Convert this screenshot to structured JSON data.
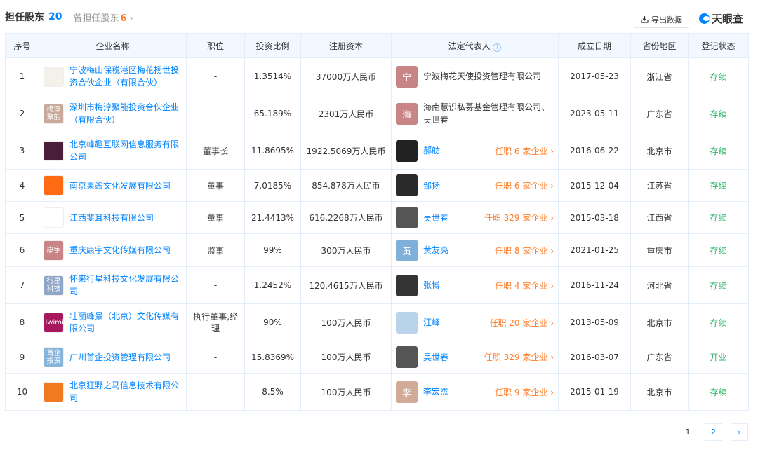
{
  "header": {
    "title": "担任股东",
    "count": "20",
    "former_label": "曾担任股东",
    "former_count": "6",
    "export_label": "导出数据",
    "brand": "天眼查"
  },
  "columns": [
    "序号",
    "企业名称",
    "职位",
    "投资比例",
    "注册资本",
    "法定代表人",
    "成立日期",
    "省份地区",
    "登记状态"
  ],
  "rows": [
    {
      "no": "1",
      "name": "宁波梅山保税港区梅花扬世投资合伙企业（有限合伙）",
      "logo_text": "",
      "logo_color": "#f4f0ea",
      "position": "-",
      "ratio": "1.3514%",
      "capital": "37000万人民币",
      "rep": "宁波梅花天使投资管理有限公司",
      "rep_avatar": "宁",
      "avatar_color": "#c98585",
      "rep_link": false,
      "jobs": "",
      "date": "2017-05-23",
      "region": "浙江省",
      "status": "存续"
    },
    {
      "no": "2",
      "name": "深圳市梅淳聚能投资合伙企业（有限合伙）",
      "logo_text": "梅淳聚能",
      "logo_color": "#c9a99a",
      "position": "-",
      "ratio": "65.189%",
      "capital": "2301万人民币",
      "rep": "海南慧识私募基金管理有限公司、吴世春",
      "rep_avatar": "海",
      "avatar_color": "#c98585",
      "rep_link": false,
      "jobs": "",
      "date": "2023-05-11",
      "region": "广东省",
      "status": "存续"
    },
    {
      "no": "3",
      "name": "北京峰趣互联网信息服务有限公司",
      "logo_text": "",
      "logo_color": "#4a1e3a",
      "position": "董事长",
      "ratio": "11.8695%",
      "capital": "1922.5069万人民币",
      "rep": "郝舫",
      "rep_avatar": "",
      "avatar_color": "#222",
      "rep_link": true,
      "jobs": "任职 6 家企业",
      "date": "2016-06-22",
      "region": "北京市",
      "status": "存续"
    },
    {
      "no": "4",
      "name": "南京果酱文化发展有限公司",
      "logo_text": "",
      "logo_color": "#ff6a14",
      "position": "董事",
      "ratio": "7.0185%",
      "capital": "854.878万人民币",
      "rep": "邹扬",
      "rep_avatar": "",
      "avatar_color": "#2a2a2a",
      "rep_link": true,
      "jobs": "任职 6 家企业",
      "date": "2015-12-04",
      "region": "江苏省",
      "status": "存续"
    },
    {
      "no": "5",
      "name": "江西斐耳科技有限公司",
      "logo_text": "",
      "logo_color": "#ffffff",
      "position": "董事",
      "ratio": "21.4413%",
      "capital": "616.2268万人民币",
      "rep": "吴世春",
      "rep_avatar": "",
      "avatar_color": "#555",
      "rep_link": true,
      "jobs": "任职 329 家企业",
      "date": "2015-03-18",
      "region": "江西省",
      "status": "存续"
    },
    {
      "no": "6",
      "name": "重庆康宇文化传媒有限公司",
      "logo_text": "康宇",
      "logo_color": "#c98585",
      "position": "监事",
      "ratio": "99%",
      "capital": "300万人民币",
      "rep": "黄友亮",
      "rep_avatar": "黄",
      "avatar_color": "#7fb0d9",
      "rep_link": true,
      "jobs": "任职 8 家企业",
      "date": "2021-01-25",
      "region": "重庆市",
      "status": "存续"
    },
    {
      "no": "7",
      "name": "怀来行星科技文化发展有限公司",
      "logo_text": "行星科技",
      "logo_color": "#8fa6c8",
      "position": "-",
      "ratio": "1.2452%",
      "capital": "120.4615万人民币",
      "rep": "张博",
      "rep_avatar": "",
      "avatar_color": "#333",
      "rep_link": true,
      "jobs": "任职 4 家企业",
      "date": "2016-11-24",
      "region": "河北省",
      "status": "存续"
    },
    {
      "no": "8",
      "name": "壮丽峰景（北京）文化传媒有限公司",
      "logo_text": "iwimi",
      "logo_color": "#a8185e",
      "position": "执行董事,经理",
      "ratio": "90%",
      "capital": "100万人民币",
      "rep": "汪峰",
      "rep_avatar": "",
      "avatar_color": "#b9d3ea",
      "rep_link": true,
      "jobs": "任职 20 家企业",
      "date": "2013-05-09",
      "region": "北京市",
      "status": "存续"
    },
    {
      "no": "9",
      "name": "广州首企投资管理有限公司",
      "logo_text": "首企投资",
      "logo_color": "#86b4db",
      "position": "-",
      "ratio": "15.8369%",
      "capital": "100万人民币",
      "rep": "吴世春",
      "rep_avatar": "",
      "avatar_color": "#555",
      "rep_link": true,
      "jobs": "任职 329 家企业",
      "date": "2016-03-07",
      "region": "广东省",
      "status": "开业"
    },
    {
      "no": "10",
      "name": "北京狂野之马信息技术有限公司",
      "logo_text": "",
      "logo_color": "#f07a22",
      "position": "-",
      "ratio": "8.5%",
      "capital": "100万人民币",
      "rep": "李宏杰",
      "rep_avatar": "李",
      "avatar_color": "#d2ab98",
      "rep_link": true,
      "jobs": "任职 9 家企业",
      "date": "2015-01-19",
      "region": "北京市",
      "status": "存续"
    }
  ],
  "pagination": {
    "pages": [
      "1",
      "2"
    ],
    "current": "1",
    "next": "›"
  },
  "colors": {
    "link": "#0084ff",
    "accent": "#ff7d28",
    "status": "#2bb36b",
    "header_bg": "#f2f8ff"
  }
}
